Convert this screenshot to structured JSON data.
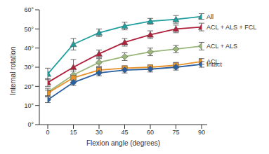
{
  "chart_data": {
    "type": "line",
    "x_label": "Flexion angle (degrees)",
    "y_label": "Internal rotation",
    "x": [
      0,
      15,
      30,
      45,
      60,
      75,
      90
    ],
    "xlim": [
      0,
      90
    ],
    "xticks": [
      0,
      15,
      30,
      45,
      60,
      75,
      90
    ],
    "ylim": [
      0,
      60
    ],
    "yticks": [
      {
        "value": 0,
        "label": "0°"
      },
      {
        "value": 10,
        "label": "10°"
      },
      {
        "value": 20,
        "label": "20°"
      },
      {
        "value": 30,
        "label": "30°"
      },
      {
        "value": 40,
        "label": "40°"
      },
      {
        "value": 50,
        "label": "50°"
      },
      {
        "value": 60,
        "label": "60°"
      }
    ],
    "grid": false,
    "series": [
      {
        "name": "All",
        "color": "#1f9e9e",
        "marker": "triangle",
        "values": [
          26.5,
          42,
          48,
          51.5,
          54,
          55,
          56.5
        ],
        "errors": [
          3,
          3,
          2,
          2,
          1.5,
          2,
          1.5
        ]
      },
      {
        "name": "ACL + ALS + FCL",
        "color": "#b0203a",
        "marker": "triangle",
        "values": [
          22,
          30,
          37,
          43,
          47,
          50,
          51
        ],
        "errors": [
          2,
          4,
          2,
          2,
          2,
          2,
          2
        ]
      },
      {
        "name": "ACL + ALS",
        "color": "#9ab67a",
        "marker": "diamond",
        "values": [
          17,
          26,
          32.5,
          35.5,
          38,
          39.5,
          41
        ],
        "errors": [
          2,
          2,
          2,
          2,
          2,
          2,
          2
        ]
      },
      {
        "name": "ACL",
        "color": "#e8922a",
        "marker": "square",
        "values": [
          16.5,
          24.5,
          28.5,
          29.5,
          30,
          31,
          33
        ],
        "errors": [
          1.5,
          1.5,
          1.5,
          1,
          1,
          1.5,
          1.5
        ]
      },
      {
        "name": "Intact",
        "color": "#2a5fa0",
        "marker": "diamond",
        "values": [
          13,
          22,
          27,
          28.5,
          29,
          30,
          31.5
        ],
        "errors": [
          1.5,
          1.5,
          1.5,
          1.5,
          1.5,
          1.5,
          1.5
        ]
      }
    ]
  }
}
